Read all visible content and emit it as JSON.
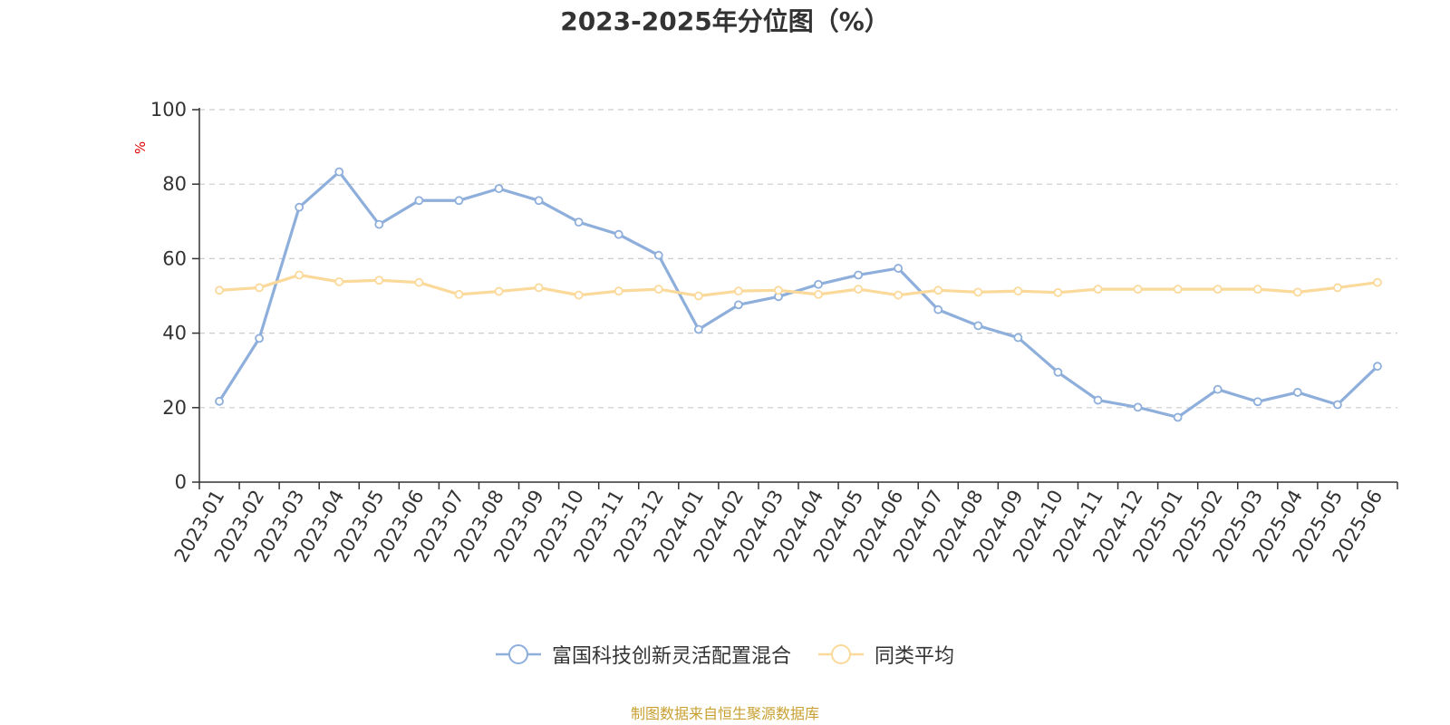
{
  "chart_data": {
    "type": "line",
    "title": "2023-2025年分位图（%）",
    "ylabel": "%",
    "ylim": [
      0,
      100
    ],
    "yticks": [
      0,
      20,
      40,
      60,
      80,
      100
    ],
    "grid": true,
    "legend_position": "bottom-center",
    "categories": [
      "2023-01",
      "2023-02",
      "2023-03",
      "2023-04",
      "2023-05",
      "2023-06",
      "2023-07",
      "2023-08",
      "2023-09",
      "2023-10",
      "2023-11",
      "2023-12",
      "2024-01",
      "2024-02",
      "2024-03",
      "2024-04",
      "2024-05",
      "2024-06",
      "2024-07",
      "2024-08",
      "2024-09",
      "2024-10",
      "2024-11",
      "2024-12",
      "2025-01",
      "2025-02",
      "2025-03",
      "2025-04",
      "2025-05",
      "2025-06"
    ],
    "series": [
      {
        "name": "富国科技创新灵活配置混合",
        "color": "#8eaedb",
        "values": [
          21.7,
          38.6,
          73.8,
          83.3,
          69.2,
          75.6,
          75.6,
          78.8,
          75.6,
          69.8,
          66.5,
          60.9,
          41.0,
          47.6,
          49.8,
          53.1,
          55.6,
          57.4,
          46.3,
          42.0,
          38.8,
          29.5,
          22.0,
          20.1,
          17.4,
          24.9,
          21.6,
          24.1,
          20.8,
          31.1
        ]
      },
      {
        "name": "同类平均",
        "color": "#fbd99a",
        "values": [
          51.5,
          52.2,
          55.6,
          53.8,
          54.2,
          53.6,
          50.4,
          51.2,
          52.2,
          50.2,
          51.3,
          51.8,
          50.0,
          51.3,
          51.5,
          50.4,
          51.8,
          50.2,
          51.5,
          51.0,
          51.3,
          50.9,
          51.8,
          51.8,
          51.8,
          51.8,
          51.8,
          51.0,
          52.2,
          53.6
        ]
      }
    ]
  },
  "source": "制图数据来自恒生聚源数据库"
}
